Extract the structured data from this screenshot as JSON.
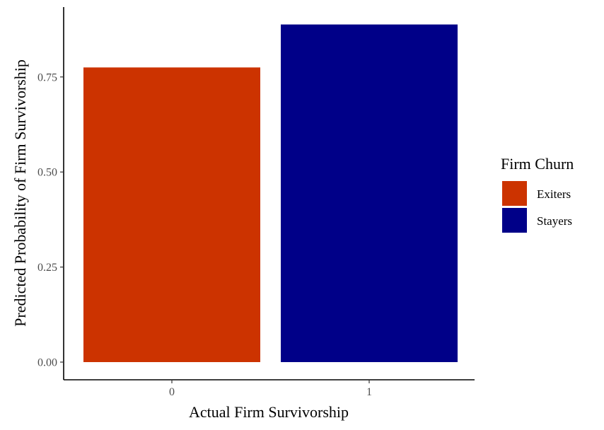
{
  "chart_data": {
    "type": "bar",
    "categories": [
      "0",
      "1"
    ],
    "values": [
      0.775,
      0.888
    ],
    "bar_series": [
      "Exiters",
      "Stayers"
    ],
    "xlabel": "Actual Firm Survivorship",
    "ylabel": "Predicted Probability of Firm Survivorship",
    "ylim": [
      0,
      0.9
    ],
    "yticks": [
      0.0,
      0.25,
      0.5,
      0.75
    ],
    "ytick_labels": [
      "0.00",
      "0.25",
      "0.50",
      "0.75"
    ],
    "grid": false,
    "legend": {
      "title": "Firm Churn",
      "placement": "right",
      "entries": [
        {
          "label": "Exiters",
          "color": "#CC3300"
        },
        {
          "label": "Stayers",
          "color": "#000088"
        }
      ]
    }
  }
}
